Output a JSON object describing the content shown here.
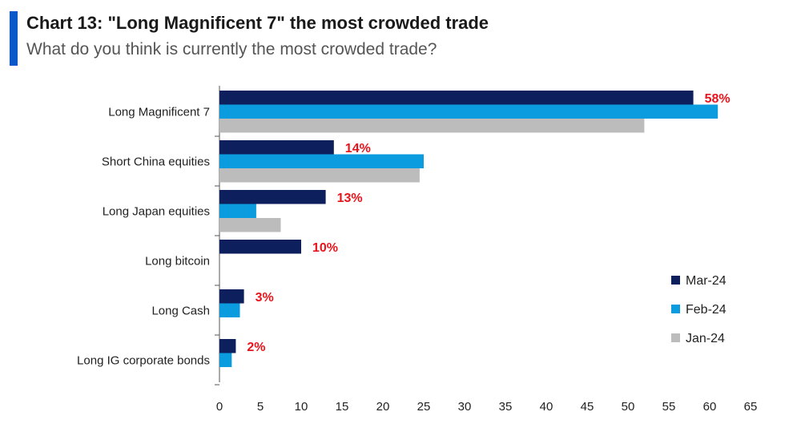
{
  "header": {
    "title": "Chart 13: \"Long Magnificent 7\" the most crowded trade",
    "subtitle": "What do you think is currently the most crowded trade?"
  },
  "colors": {
    "accent": "#0a57c9",
    "mar24": "#0d1f5c",
    "feb24": "#0b9cdf",
    "jan24": "#bcbcbc",
    "label_red": "#e8141b",
    "axis": "#555555"
  },
  "chart_data": {
    "type": "bar",
    "orientation": "horizontal",
    "title": "Chart 13: \"Long Magnificent 7\" the most crowded trade",
    "subtitle": "What do you think is currently the most crowded trade?",
    "xlabel": "",
    "ylabel": "",
    "xlim": [
      0,
      65
    ],
    "xticks": [
      "0",
      "5",
      "10",
      "15",
      "20",
      "25",
      "30",
      "35",
      "40",
      "45",
      "50",
      "55",
      "60",
      "65"
    ],
    "grid": false,
    "legend_position": "right",
    "categories": [
      "Long Magnificent 7",
      "Short China equities",
      "Long Japan equities",
      "Long bitcoin",
      "Long Cash",
      "Long IG corporate bonds"
    ],
    "series": [
      {
        "name": "Mar-24",
        "values": [
          58,
          14,
          13,
          10,
          3,
          2
        ]
      },
      {
        "name": "Feb-24",
        "values": [
          61,
          25,
          4.5,
          null,
          2.5,
          1.5
        ]
      },
      {
        "name": "Jan-24",
        "values": [
          52,
          24.5,
          7.5,
          null,
          null,
          null
        ]
      }
    ],
    "data_labels": [
      "58%",
      "14%",
      "13%",
      "10%",
      "3%",
      "2%"
    ]
  }
}
